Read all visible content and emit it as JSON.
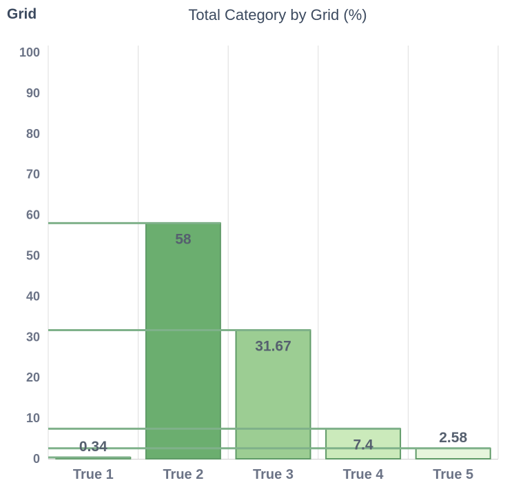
{
  "legend_label": "Grid",
  "chart_data": {
    "type": "bar",
    "title": "Total Category by Grid (%)",
    "xlabel": "",
    "ylabel": "",
    "categories": [
      "True 1",
      "True 2",
      "True 3",
      "True 4",
      "True 5"
    ],
    "values": [
      0.34,
      58,
      31.67,
      7.4,
      2.58
    ],
    "value_labels": [
      "0.34",
      "58",
      "31.67",
      "7.4",
      "2.58"
    ],
    "bar_colors": [
      "#8cc68a",
      "#6bae6f",
      "#9ccd93",
      "#cbeabb",
      "#e7f5dc"
    ],
    "border_color": "#5f9a67",
    "ylim": [
      0,
      100
    ],
    "yticks": [
      0,
      10,
      20,
      30,
      40,
      50,
      60,
      70,
      80,
      90,
      100
    ],
    "grid": true
  }
}
